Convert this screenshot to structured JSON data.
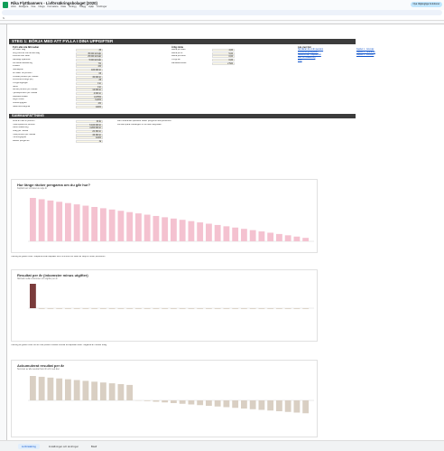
{
  "app": {
    "title": "Rika Flyttbanners - Livförsäkringsbolaget (2020)",
    "menus": [
      "Arkiv",
      "Redigera",
      "Visa",
      "Infoga",
      "Formatera",
      "Data",
      "Verktyg",
      "Tillägg",
      "Hjälp",
      "Ändringar"
    ],
    "share_label": "Nya tillgängliga funktioner"
  },
  "formula": "fx",
  "banner": "STEG 1: BÖRJA MED ATT FYLLA I DINA UPPGIFTER",
  "inputs": {
    "heading": "Fyll i alla vita fält nedan",
    "rows": [
      {
        "label": "Din ålder idag",
        "value": "35"
      },
      {
        "label": "Årlig inkomst från arbete idag",
        "value": "35 000 kr/mån"
      },
      {
        "label": "Inkomst efter skatt",
        "value": "25 000 kr/mån"
      },
      {
        "label": "Månatligt sparande",
        "value": "5 000 kr/mån"
      },
      {
        "label": "Förväntad avkastning",
        "value": "7%"
      },
      {
        "label": "Inflation",
        "value": "2%"
      },
      {
        "label": "Startkapital",
        "value": "100 000 kr"
      },
      {
        "label": "Din ålder vid pension",
        "value": "65"
      },
      {
        "label": "Önskad pension per månad",
        "value": "30 000 kr"
      },
      {
        "label": "Pensionens längd (år)",
        "value": "25"
      },
      {
        "label": "Övriga tillgångar",
        "value": "0 kr"
      },
      {
        "label": "Skuld",
        "value": "0 kr"
      },
      {
        "label": "Allmän pension per månad",
        "value": "12 000 kr"
      },
      {
        "label": "Tjänstepension per månad",
        "value": "4 000 kr"
      },
      {
        "label": "Kapitalvinstskatt",
        "value": "0,375%"
      },
      {
        "label": "Avgift fonder",
        "value": "0,20%"
      },
      {
        "label": "Utdelningsgrad",
        "value": "4%"
      },
      {
        "label": "Säkerhetsmarginal",
        "value": "100%"
      }
    ]
  },
  "mid_inputs": {
    "heading": "Årlig ränta",
    "rows": [
      {
        "label": "Ränta på bolån",
        "value": "4,00"
      },
      {
        "label": "Ränta på bil",
        "value": "5,00"
      },
      {
        "label": "Ränta på kredit",
        "value": "0,00"
      },
      {
        "label": "Övrigt lån",
        "value": "0,00"
      },
      {
        "label": "Månadskostnad",
        "value": "2 500"
      }
    ]
  },
  "links": {
    "heading": "Läs mer här",
    "items": [
      {
        "label": "Så räknar du ut din pension"
      },
      {
        "label": "Pensionsmyndigheten"
      },
      {
        "label": "Skatteverket: Kapitalvinst"
      },
      {
        "label": "Mer om avkastning"
      },
      {
        "label": "FAQ"
      }
    ],
    "right_items": [
      {
        "label": "Kapitel 1 - Grunder"
      },
      {
        "label": "Kapitel 2 - Sparande"
      },
      {
        "label": "Kapitel 3 - Pension"
      }
    ]
  },
  "summary": {
    "heading": "SAMMANFATTNING",
    "rows": [
      {
        "label": "Antal år kvar till pension",
        "value": "30 år"
      },
      {
        "label": "Totalt sparat vid pension",
        "value": "6 100 000 kr"
      },
      {
        "label": "Varav avkastning",
        "value": "4 200 000 kr"
      },
      {
        "label": "Uttag per månad",
        "value": "20 300 kr"
      },
      {
        "label": "Total pension per månad",
        "value": "36 300 kr"
      },
      {
        "label": "Täckningsgrad",
        "value": "104%"
      },
      {
        "label": "Räcker pengarna?",
        "value": "Ja"
      }
    ],
    "note1": "Med nuvarande sparande räcker pengarna hela pensionen.",
    "note2": "Fortsätt spara månatligen för att öka marginalen."
  },
  "chart1": {
    "title": "Hur länge räcker pengarna om du går hur?",
    "subtitle": "Kapital kvar vid slutet av varje år",
    "caption": "Tolkning av grafen ovan: Staplarna visar kapitalet som finns kvar vid slutet av varje år under pensionen."
  },
  "chart2": {
    "title": "Resultat per år (inkomster minus utgifter)",
    "subtitle": "Skillnad mellan inkomster och utgifter per år",
    "caption": "Tolkning av grafen ovan: Ett år med positivt resultat innebär att kapitalet växer. Negativa år innebär uttag."
  },
  "chart3": {
    "title": "Ackumulerat resultat per år",
    "subtitle": "Summan av alla resultat fram till och med året",
    "caption": ""
  },
  "tabs": [
    "Livförsäkring",
    "Inställningar och ändringar",
    "Bladf"
  ],
  "colors": {
    "pink": "#f4c2d0",
    "darkred": "#7a3b3b",
    "beige": "#d9cfc3",
    "banner": "#3c3c3c"
  }
}
